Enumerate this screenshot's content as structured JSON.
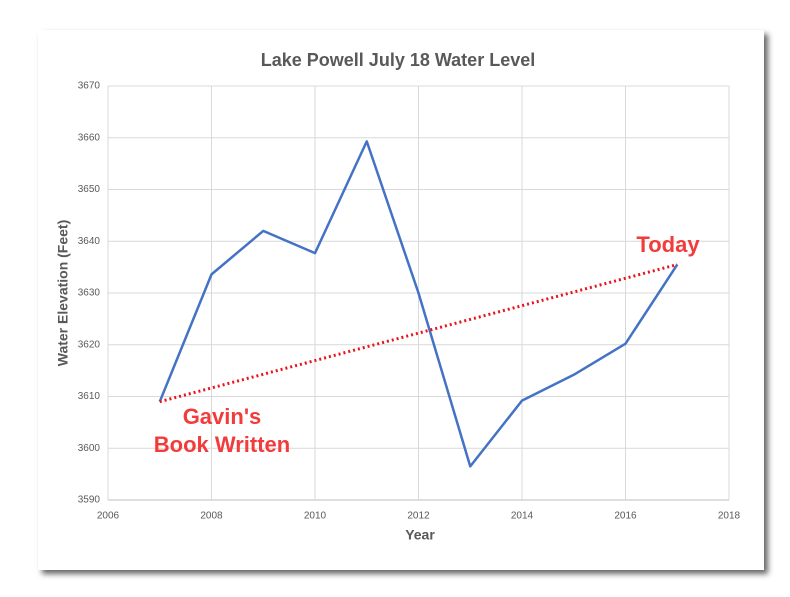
{
  "chart_data": {
    "type": "line",
    "title": "Lake Powell July 18 Water Level",
    "x_label": "Year",
    "y_label": "Water Elevation (Feet)",
    "x": [
      2007,
      2008,
      2009,
      2010,
      2011,
      2012,
      2013,
      2014,
      2015,
      2016,
      2017
    ],
    "series": [
      {
        "color": "#4472c4",
        "values": [
          3609,
          3633.6,
          3642,
          3637.7,
          3659.3,
          3630,
          3596.5,
          3609.2,
          3614.2,
          3620.2,
          3635.5
        ]
      }
    ],
    "trend_line": {
      "x": [
        2007,
        2017
      ],
      "values": [
        3609,
        3635.5
      ],
      "color": "#e8141c",
      "style": "dotted"
    },
    "annotations": [
      {
        "lines": [
          "Gavin's",
          "Book Written"
        ],
        "color": "#f23b3b"
      },
      {
        "lines": [
          "Today"
        ],
        "color": "#f23b3b"
      }
    ],
    "xlim": [
      2006,
      2018
    ],
    "xticks": [
      2006,
      2008,
      2010,
      2012,
      2014,
      2016,
      2018
    ],
    "ylim": [
      3590,
      3670
    ],
    "yticks": [
      3590,
      3600,
      3610,
      3620,
      3630,
      3640,
      3650,
      3660,
      3670
    ],
    "grid": true
  }
}
